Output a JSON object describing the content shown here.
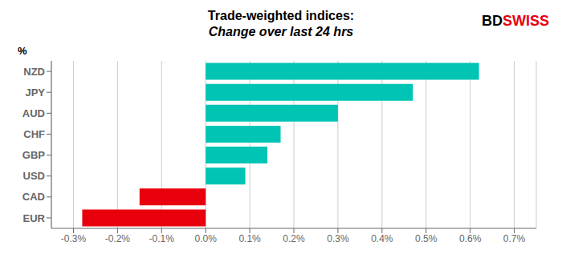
{
  "chart_data": {
    "type": "bar",
    "orientation": "horizontal",
    "title": "Trade-weighted indices:",
    "subtitle": "Change over last 24 hrs",
    "ylabel": "%",
    "categories": [
      "NZD",
      "JPY",
      "AUD",
      "CHF",
      "GBP",
      "USD",
      "CAD",
      "EUR"
    ],
    "values": [
      0.0062,
      0.0047,
      0.003,
      0.0017,
      0.0014,
      0.0009,
      -0.0015,
      -0.0028
    ],
    "colors": [
      "#00C4B4",
      "#00C4B4",
      "#00C4B4",
      "#00C4B4",
      "#00C4B4",
      "#00C4B4",
      "#E8000D",
      "#E8000D"
    ],
    "xlim": [
      -0.0035,
      0.0075
    ],
    "xticks": [
      {
        "value": -0.003,
        "label": "-0.3%"
      },
      {
        "value": -0.002,
        "label": "-0.2%"
      },
      {
        "value": -0.001,
        "label": "-0.1%"
      },
      {
        "value": 0.0,
        "label": "0.0%"
      },
      {
        "value": 0.001,
        "label": "0.1%"
      },
      {
        "value": 0.002,
        "label": "0.2%"
      },
      {
        "value": 0.003,
        "label": "0.3%"
      },
      {
        "value": 0.004,
        "label": "0.4%"
      },
      {
        "value": 0.005,
        "label": "0.5%"
      },
      {
        "value": 0.006,
        "label": "0.6%"
      },
      {
        "value": 0.007,
        "label": "0.7%"
      }
    ],
    "grid": true,
    "annotations": [
      {
        "text": "BD",
        "color": "#000000"
      },
      {
        "text": "SWISS",
        "color": "#E8000D"
      }
    ]
  }
}
